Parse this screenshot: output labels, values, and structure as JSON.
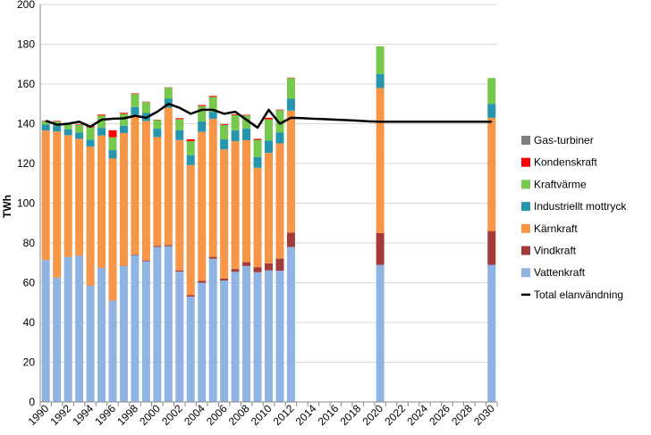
{
  "chart_data": {
    "type": "bar",
    "stacked": true,
    "ylabel": "TWh",
    "ylim": [
      0,
      200
    ],
    "yticks": [
      0,
      20,
      40,
      60,
      80,
      100,
      120,
      140,
      160,
      180,
      200
    ],
    "x_ticks": [
      "1990",
      "1992",
      "1994",
      "1996",
      "1998",
      "2000",
      "2002",
      "2004",
      "2006",
      "2008",
      "2010",
      "2012",
      "2014",
      "2016",
      "2018",
      "2020",
      "2022",
      "2024",
      "2026",
      "2028",
      "2030"
    ],
    "categories": [
      "1990",
      "1991",
      "1992",
      "1993",
      "1994",
      "1995",
      "1996",
      "1997",
      "1998",
      "1999",
      "2000",
      "2001",
      "2002",
      "2003",
      "2004",
      "2005",
      "2006",
      "2007",
      "2008",
      "2009",
      "2010",
      "2011",
      "2012",
      "2013",
      "2014",
      "2015",
      "2016",
      "2017",
      "2018",
      "2019",
      "2020",
      "2021",
      "2022",
      "2023",
      "2024",
      "2025",
      "2026",
      "2027",
      "2028",
      "2029",
      "2030"
    ],
    "grid": true,
    "legend_position": "right",
    "series": [
      {
        "name": "Vattenkraft",
        "color": "#8FB4E3",
        "values": [
          71.4,
          62.6,
          73.0,
          73.5,
          58.5,
          67.3,
          51.0,
          68.4,
          73.9,
          70.8,
          78.0,
          78.4,
          65.6,
          53.0,
          60.0,
          72.1,
          61.1,
          65.5,
          68.4,
          65.3,
          66.2,
          66.0,
          78.0,
          null,
          null,
          null,
          null,
          null,
          null,
          null,
          69.0,
          null,
          null,
          null,
          null,
          null,
          null,
          null,
          null,
          null,
          69.0
        ]
      },
      {
        "name": "Vindkraft",
        "color": "#A33B3B",
        "values": [
          0,
          0,
          0,
          0.1,
          0.1,
          0.1,
          0.1,
          0.2,
          0.3,
          0.4,
          0.5,
          0.5,
          0.6,
          0.7,
          0.9,
          0.9,
          1.0,
          1.4,
          2.0,
          2.5,
          3.5,
          6.1,
          7.2,
          null,
          null,
          null,
          null,
          null,
          null,
          null,
          16.0,
          null,
          null,
          null,
          null,
          null,
          null,
          null,
          null,
          null,
          17.0
        ]
      },
      {
        "name": "Kärnkraft",
        "color": "#F79646",
        "values": [
          65.2,
          73.5,
          61.2,
          58.8,
          69.9,
          66.7,
          71.4,
          66.7,
          70.2,
          70.2,
          54.8,
          69.2,
          65.6,
          65.5,
          75.0,
          69.5,
          65.0,
          64.3,
          61.3,
          50.0,
          55.6,
          58.0,
          61.4,
          null,
          null,
          null,
          null,
          null,
          null,
          null,
          73.0,
          null,
          null,
          null,
          null,
          null,
          null,
          null,
          null,
          null,
          57.0
        ]
      },
      {
        "name": "Industriellt mottryck",
        "color": "#2596AE",
        "values": [
          3.0,
          3.0,
          3.0,
          3.2,
          3.5,
          3.8,
          4.2,
          3.7,
          4.0,
          4.0,
          4.2,
          4.5,
          5.0,
          5.0,
          5.2,
          3.5,
          5.0,
          5.5,
          5.8,
          5.5,
          6.3,
          5.4,
          6.0,
          null,
          null,
          null,
          null,
          null,
          null,
          null,
          7.0,
          null,
          null,
          null,
          null,
          null,
          null,
          null,
          null,
          null,
          7.0
        ]
      },
      {
        "name": "Kraftvärme",
        "color": "#77C94E",
        "values": [
          1.8,
          2.0,
          3.0,
          3.8,
          6.2,
          6.2,
          6.5,
          6.0,
          6.6,
          5.5,
          4.3,
          5.5,
          5.5,
          7.0,
          7.8,
          7.5,
          7.3,
          7.6,
          6.7,
          8.6,
          10.6,
          11.3,
          10.4,
          null,
          null,
          null,
          null,
          null,
          null,
          null,
          14.0,
          null,
          null,
          null,
          null,
          null,
          null,
          null,
          null,
          null,
          13.0
        ]
      },
      {
        "name": "Kondenskraft",
        "color": "#FF0000",
        "values": [
          0.2,
          0.3,
          0.2,
          0.3,
          0.8,
          0.5,
          3.5,
          0.5,
          0.3,
          0.2,
          0.2,
          0.2,
          0.5,
          1.0,
          0.5,
          0.5,
          0.4,
          0.4,
          0.3,
          0.5,
          0.8,
          0.3,
          0.2,
          null,
          null,
          null,
          null,
          null,
          null,
          null,
          0,
          null,
          null,
          null,
          null,
          null,
          null,
          null,
          null,
          null,
          0
        ]
      },
      {
        "name": "Gas-turbiner",
        "color": "#7F7F7F",
        "values": [
          0,
          0,
          0,
          0,
          0,
          0,
          0,
          0,
          0,
          0,
          0,
          0,
          0,
          0,
          0,
          0,
          0,
          0,
          0,
          0,
          0,
          0,
          0,
          null,
          null,
          null,
          null,
          null,
          null,
          null,
          0,
          null,
          null,
          null,
          null,
          null,
          null,
          null,
          null,
          null,
          0
        ]
      }
    ],
    "line_series": {
      "name": "Total elanvändning",
      "color": "#000000",
      "values": [
        141.5,
        139.5,
        140.0,
        141.0,
        138.5,
        142.0,
        142.5,
        142.7,
        144.0,
        143.0,
        146.0,
        150.0,
        148.0,
        145.0,
        147.0,
        147.0,
        145.0,
        146.0,
        142.0,
        138.0,
        147.0,
        140.0,
        143.0,
        142.8,
        142.5,
        142.3,
        142.0,
        141.8,
        141.5,
        141.2,
        141.0,
        141.0,
        141.0,
        141.0,
        141.0,
        141.0,
        141.0,
        141.0,
        141.0,
        141.0,
        141.0
      ]
    },
    "legend_order": [
      "Gas-turbiner",
      "Kondenskraft",
      "Kraftvärme",
      "Industriellt mottryck",
      "Kärnkraft",
      "Vindkraft",
      "Vattenkraft",
      "Total elanvändning"
    ]
  }
}
